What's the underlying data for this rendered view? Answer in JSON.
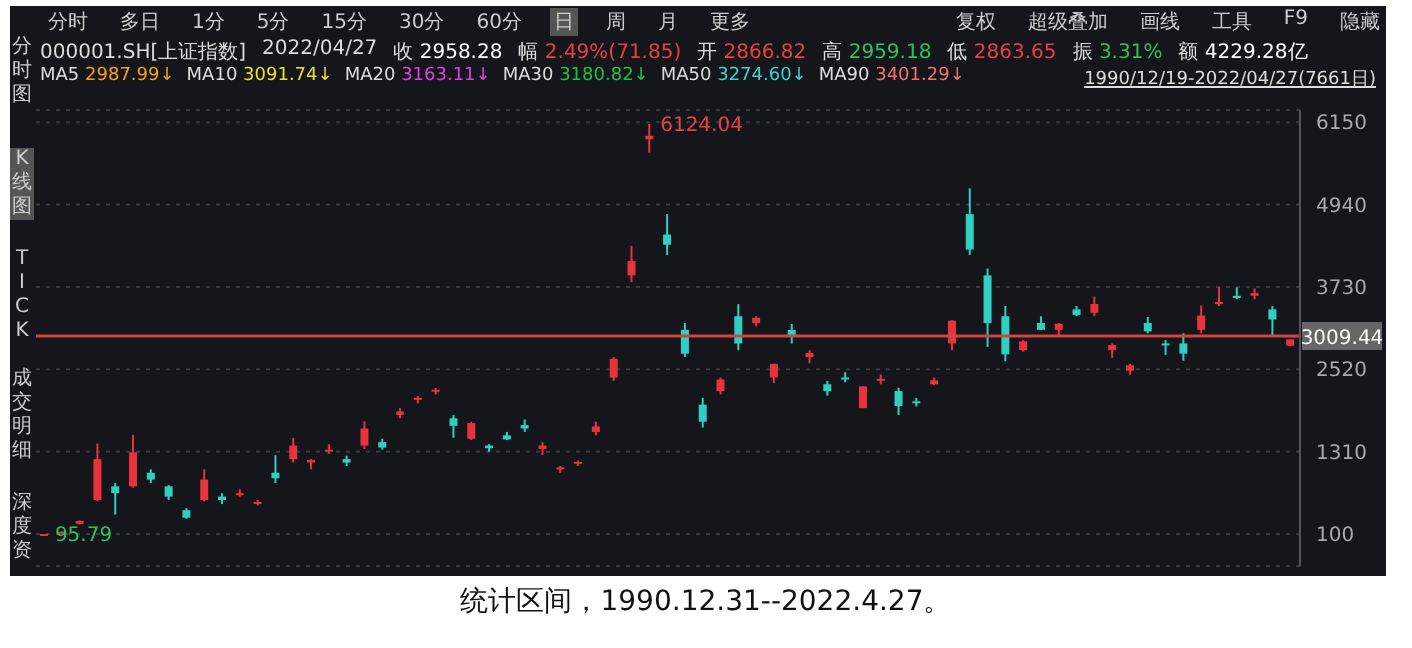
{
  "chart_data": {
    "type": "candlestick",
    "categories": [
      null,
      null,
      null,
      null,
      null,
      null,
      null,
      null,
      null,
      null,
      null,
      null,
      null,
      null,
      null,
      null,
      null,
      null,
      null,
      null,
      null,
      null,
      null,
      null,
      null,
      null,
      null,
      null,
      null,
      null,
      null,
      null,
      null,
      null,
      null,
      null,
      null,
      null,
      null,
      null,
      null,
      null,
      null,
      null,
      null,
      null,
      null,
      null,
      null,
      null,
      null,
      null,
      null,
      null,
      null,
      null,
      null,
      null,
      null,
      null,
      null,
      null,
      null,
      null,
      null,
      null,
      null,
      null,
      null,
      null,
      null
    ],
    "ohlc": [
      [
        96.05,
        100,
        95.79,
        99.98
      ],
      [
        110,
        140,
        105,
        135
      ],
      [
        250,
        300,
        240,
        292
      ],
      [
        600,
        1429,
        580,
        1200
      ],
      [
        800,
        850,
        386,
        700
      ],
      [
        800,
        1558,
        780,
        1300
      ],
      [
        1000,
        1050,
        850,
        900
      ],
      [
        800,
        820,
        600,
        650
      ],
      [
        450,
        480,
        325,
        340
      ],
      [
        600,
        1052,
        580,
        900
      ],
      [
        650,
        700,
        540,
        600
      ],
      [
        700,
        760,
        650,
        700
      ],
      [
        560,
        600,
        520,
        570
      ],
      [
        1000,
        1258,
        850,
        920
      ],
      [
        1200,
        1510,
        1150,
        1400
      ],
      [
        1150,
        1200,
        1050,
        1190
      ],
      [
        1330,
        1420,
        1280,
        1340
      ],
      [
        1200,
        1250,
        1100,
        1150
      ],
      [
        1400,
        1756,
        1350,
        1650
      ],
      [
        1450,
        1500,
        1340,
        1370
      ],
      [
        1850,
        1950,
        1800,
        1900
      ],
      [
        2070,
        2130,
        2020,
        2100
      ],
      [
        2200,
        2245,
        2150,
        2220
      ],
      [
        1800,
        1850,
        1514,
        1690
      ],
      [
        1500,
        1748,
        1480,
        1730
      ],
      [
        1400,
        1420,
        1310,
        1360
      ],
      [
        1550,
        1600,
        1480,
        1490
      ],
      [
        1700,
        1783,
        1600,
        1650
      ],
      [
        1350,
        1450,
        1260,
        1400
      ],
      [
        1050,
        1100,
        998,
        1080
      ],
      [
        1150,
        1180,
        1100,
        1160
      ],
      [
        1600,
        1750,
        1550,
        1680
      ],
      [
        2400,
        2700,
        2350,
        2675
      ],
      [
        3900,
        4335,
        3800,
        4110
      ],
      [
        5900,
        6124.04,
        5700,
        5950
      ],
      [
        4500,
        4800,
        4200,
        4350
      ],
      [
        3100,
        3200,
        2700,
        2750
      ],
      [
        2000,
        2100,
        1664,
        1750
      ],
      [
        2200,
        2400,
        2150,
        2370
      ],
      [
        3300,
        3478,
        2800,
        2900
      ],
      [
        3200,
        3300,
        3150,
        3277
      ],
      [
        2400,
        2600,
        2319,
        2600
      ],
      [
        3100,
        3186,
        2900,
        3000
      ],
      [
        2700,
        2800,
        2610,
        2760
      ],
      [
        2300,
        2350,
        2132,
        2199
      ],
      [
        2400,
        2478,
        2330,
        2370
      ],
      [
        1950,
        2270,
        1949,
        2270
      ],
      [
        2350,
        2444,
        2300,
        2380
      ],
      [
        2200,
        2250,
        1849,
        1980
      ],
      [
        2050,
        2100,
        1974,
        2030
      ],
      [
        2300,
        2400,
        2290,
        2360
      ],
      [
        2900,
        3239,
        2800,
        3235
      ],
      [
        4800,
        5178,
        4200,
        4280
      ],
      [
        3900,
        4000,
        2850,
        3200
      ],
      [
        3300,
        3450,
        2638,
        2740
      ],
      [
        2800,
        2950,
        2780,
        2930
      ],
      [
        3200,
        3300,
        3100,
        3100
      ],
      [
        3100,
        3200,
        3020,
        3190
      ],
      [
        3400,
        3450,
        3300,
        3320
      ],
      [
        3350,
        3587,
        3300,
        3480
      ],
      [
        2800,
        2900,
        2690,
        2876
      ],
      [
        2500,
        2600,
        2440,
        2580
      ],
      [
        3200,
        3288,
        3050,
        3078
      ],
      [
        2900,
        2950,
        2733,
        2886
      ],
      [
        2900,
        3050,
        2646,
        2750
      ],
      [
        3100,
        3458,
        3050,
        3310
      ],
      [
        3500,
        3731,
        3450,
        3509
      ],
      [
        3600,
        3723,
        3550,
        3568
      ],
      [
        3600,
        3708,
        3550,
        3639
      ],
      [
        3400,
        3450,
        3023,
        3252
      ],
      [
        2866.82,
        2959.18,
        2863.65,
        2958.28
      ]
    ],
    "ylim": [
      -370,
      6330
    ],
    "yticks": [
      100,
      1310,
      2520,
      3730,
      4940,
      6150
    ],
    "tick_labels": "y",
    "grid": "y",
    "ref_lines": [
      {
        "axis": "y",
        "value": 3009.44,
        "label": "3009.44",
        "color": "#d0453f"
      }
    ],
    "annotations": [
      "分时",
      "多日",
      "1分",
      "5分",
      "15分",
      "30分",
      "60分",
      "日",
      "周",
      "月",
      "更多",
      "复权",
      "超级叠加",
      "画线",
      "工具",
      "F9",
      "隐藏",
      "000001.SH[上证指数]",
      "2022/04/27",
      "收 2958.28",
      "幅 2.49%(71.85)",
      "开 2866.82",
      "高 2959.18",
      "低 2863.65",
      "振 3.31%",
      "额 4229.28亿",
      "MA5 2987.99↓",
      "MA10 3091.74↓",
      "MA20 3163.11↓",
      "MA30 3180.82↓",
      "MA50 3274.60↓",
      "MA90 3401.29↓",
      "1990/12/19-2022/04/27(7661日)",
      "分时图",
      "K线图",
      "TICK",
      "成交明细",
      "深度资",
      "统计区间，1990.12.31--2022.4.27。",
      "6124.04",
      "95.79"
    ]
  }
}
